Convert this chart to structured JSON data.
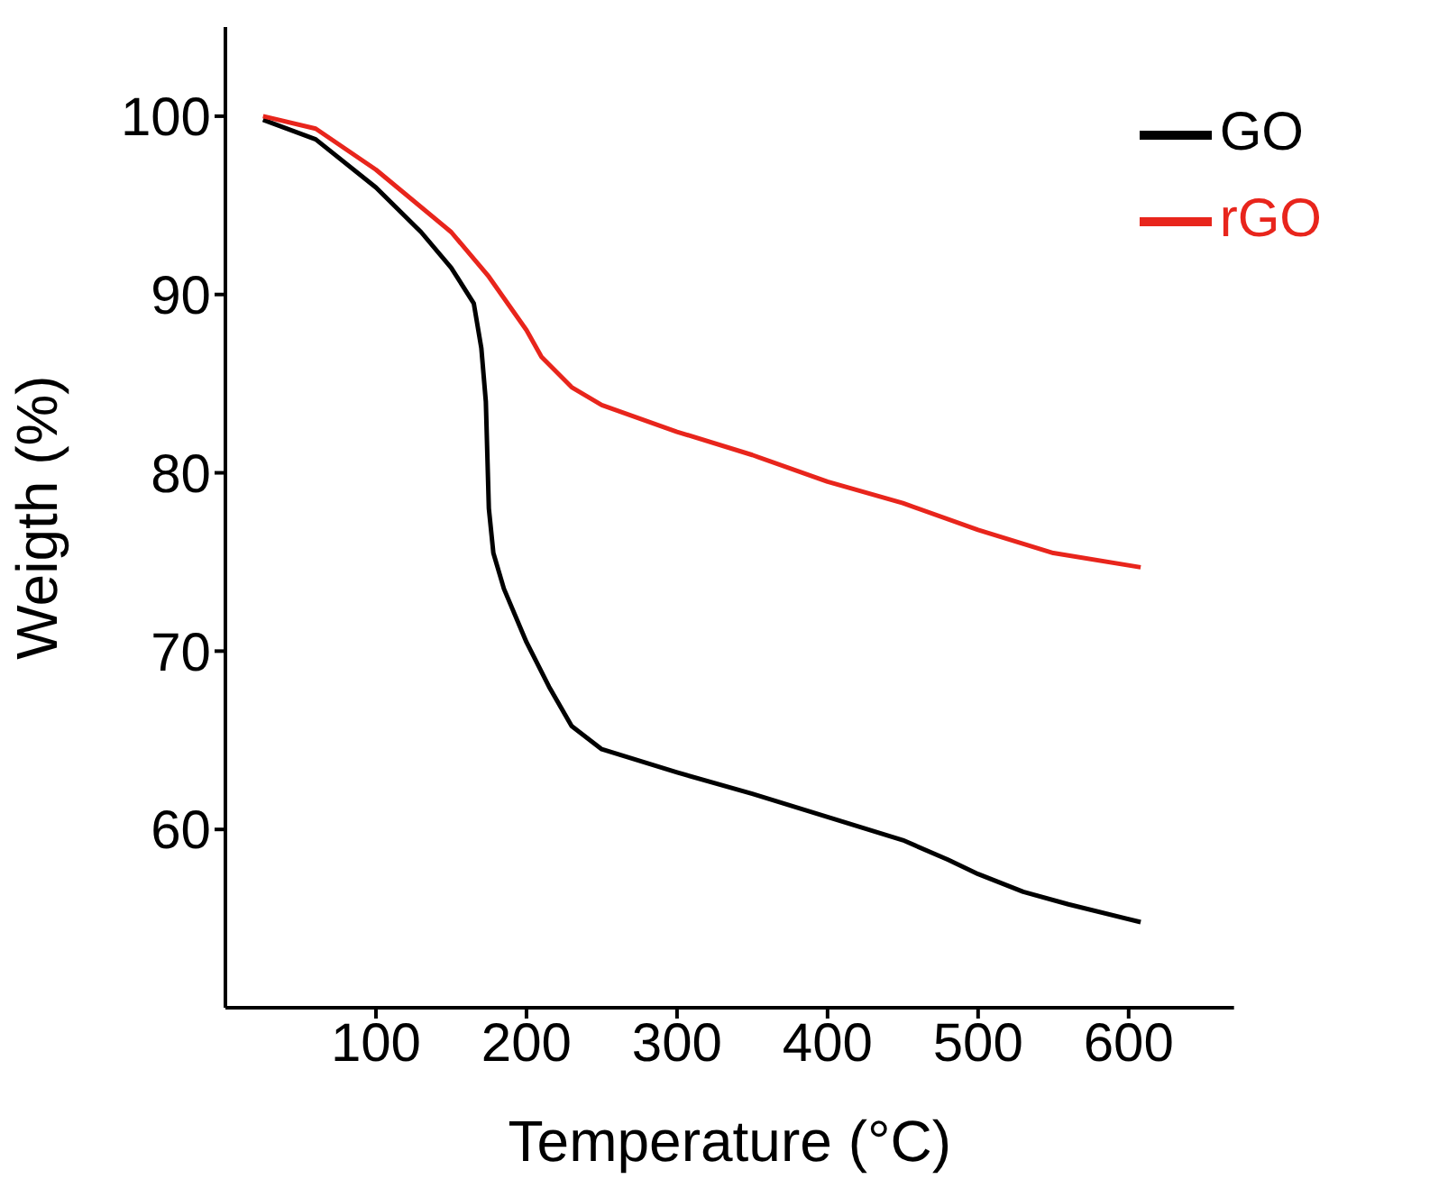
{
  "chart_data": {
    "type": "line",
    "xlabel": "Temperature (°C)",
    "ylabel": "Weigth (%)",
    "xlim": [
      0,
      670
    ],
    "xticks": [
      100,
      200,
      300,
      400,
      500,
      600
    ],
    "ylim": [
      50,
      105
    ],
    "yticks": [
      60,
      70,
      80,
      90,
      100
    ],
    "legend": "top right",
    "marker": "none",
    "line_style": "solid",
    "series": [
      {
        "name": "GO",
        "color": "#000000",
        "x": [
          25,
          60,
          100,
          130,
          150,
          165,
          170,
          173,
          175,
          178,
          185,
          200,
          215,
          230,
          250,
          300,
          350,
          400,
          450,
          480,
          500,
          530,
          560,
          608
        ],
        "values": [
          99.8,
          98.7,
          96.0,
          93.5,
          91.5,
          89.5,
          87,
          84,
          78,
          75.5,
          73.5,
          70.5,
          68,
          65.8,
          64.5,
          63.2,
          62,
          60.7,
          59.4,
          58.3,
          57.5,
          56.5,
          55.8,
          54.8
        ]
      },
      {
        "name": "rGO",
        "color": "#e8251c",
        "x": [
          25,
          60,
          100,
          150,
          175,
          200,
          210,
          230,
          250,
          300,
          350,
          400,
          450,
          500,
          550,
          608
        ],
        "values": [
          100,
          99.3,
          97,
          93.5,
          91,
          88,
          86.5,
          84.8,
          83.8,
          82.3,
          81,
          79.5,
          78.3,
          76.8,
          75.5,
          74.7
        ]
      }
    ]
  }
}
